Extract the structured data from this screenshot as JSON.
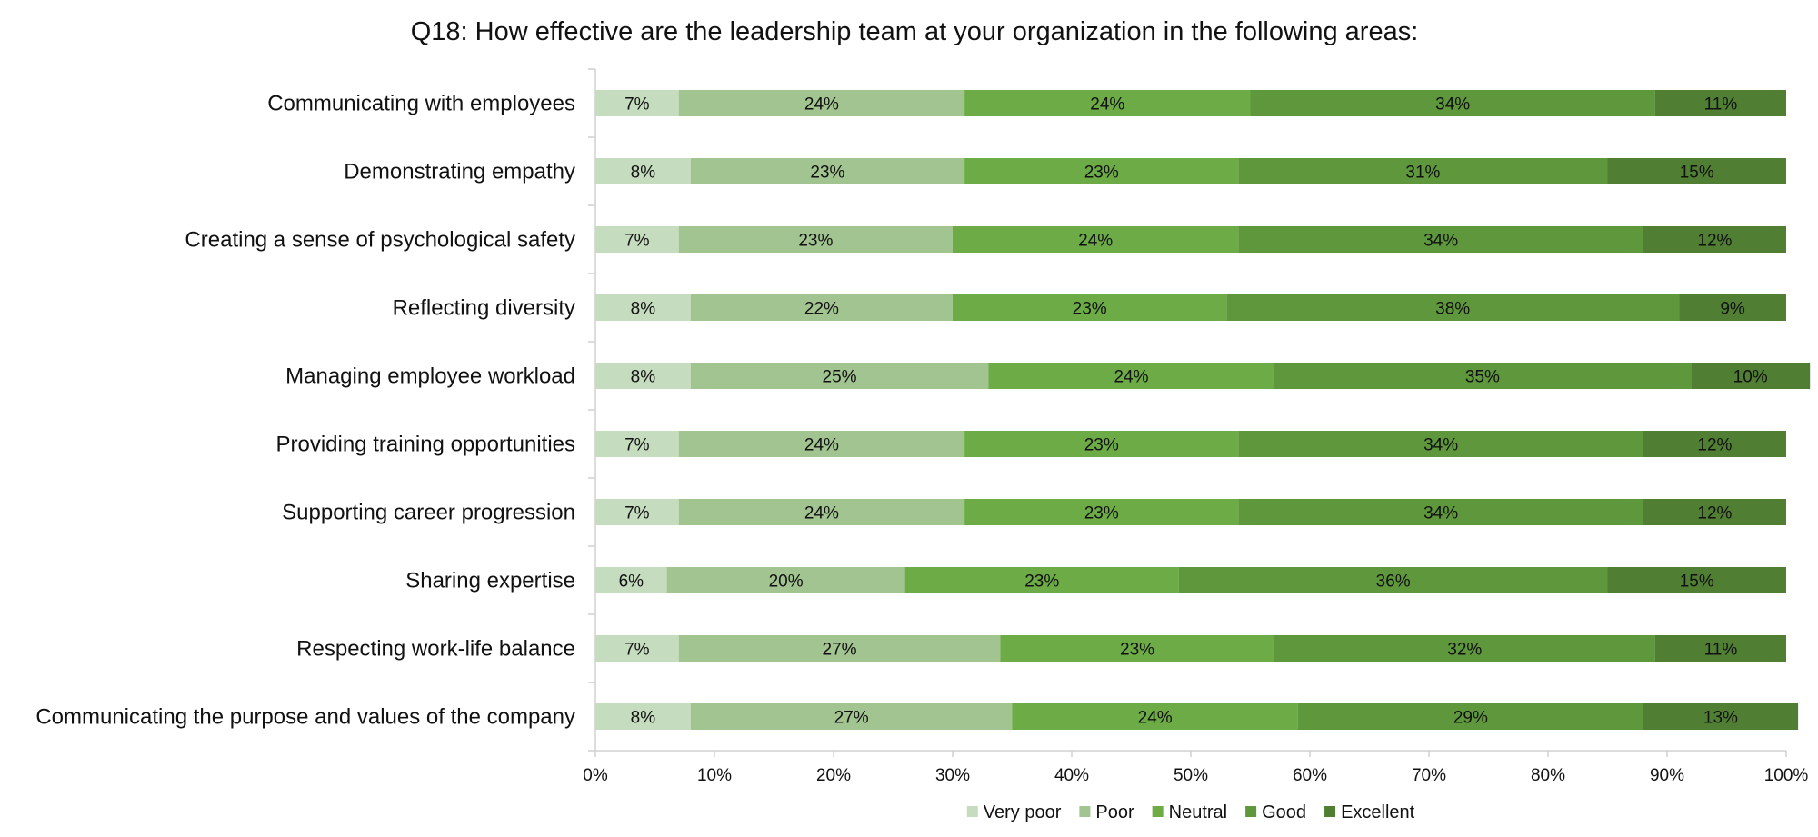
{
  "chart_data": {
    "type": "bar",
    "orientation": "horizontal",
    "stacked": true,
    "title": "Q18: How effective are the leadership team at your organization in the following areas:",
    "xlabel": "",
    "ylabel": "",
    "xlim": [
      0,
      100
    ],
    "x_ticks": [
      "0%",
      "10%",
      "20%",
      "30%",
      "40%",
      "50%",
      "60%",
      "70%",
      "80%",
      "90%",
      "100%"
    ],
    "grid": false,
    "legend_position": "bottom",
    "categories": [
      "Communicating with employees",
      "Demonstrating empathy",
      "Creating a sense of psychological safety",
      "Reflecting diversity",
      "Managing employee workload",
      "Providing training opportunities",
      "Supporting career progression",
      "Sharing expertise",
      "Respecting work-life balance",
      "Communicating the purpose and values of the company"
    ],
    "series": [
      {
        "name": "Very poor",
        "color": "#c5dcbe",
        "values": [
          7,
          8,
          7,
          8,
          8,
          7,
          7,
          6,
          7,
          8
        ],
        "labels": [
          "7%",
          "8%",
          "7%",
          "8%",
          "8%",
          "7%",
          "7%",
          "6%",
          "7%",
          "8%"
        ]
      },
      {
        "name": "Poor",
        "color": "#a2c490",
        "values": [
          24,
          23,
          23,
          22,
          25,
          24,
          24,
          20,
          27,
          27
        ],
        "labels": [
          "24%",
          "23%",
          "23%",
          "22%",
          "25%",
          "24%",
          "24%",
          "20%",
          "27%",
          "27%"
        ]
      },
      {
        "name": "Neutral",
        "color": "#6dab46",
        "values": [
          24,
          23,
          24,
          23,
          24,
          23,
          23,
          23,
          23,
          24
        ],
        "labels": [
          "24%",
          "23%",
          "24%",
          "23%",
          "24%",
          "23%",
          "23%",
          "23%",
          "23%",
          "24%"
        ]
      },
      {
        "name": "Good",
        "color": "#5f983c",
        "values": [
          34,
          31,
          34,
          38,
          35,
          34,
          34,
          36,
          32,
          29
        ],
        "labels": [
          "34%",
          "31%",
          "34%",
          "38%",
          "35%",
          "34%",
          "34%",
          "36%",
          "32%",
          "29%"
        ]
      },
      {
        "name": "Excellent",
        "color": "#507f34",
        "values": [
          11,
          15,
          12,
          9,
          10,
          12,
          12,
          15,
          11,
          13
        ],
        "labels": [
          "11%",
          "15%",
          "12%",
          "9%",
          "10%",
          "12%",
          "12%",
          "15%",
          "11%",
          "13%"
        ]
      }
    ]
  }
}
